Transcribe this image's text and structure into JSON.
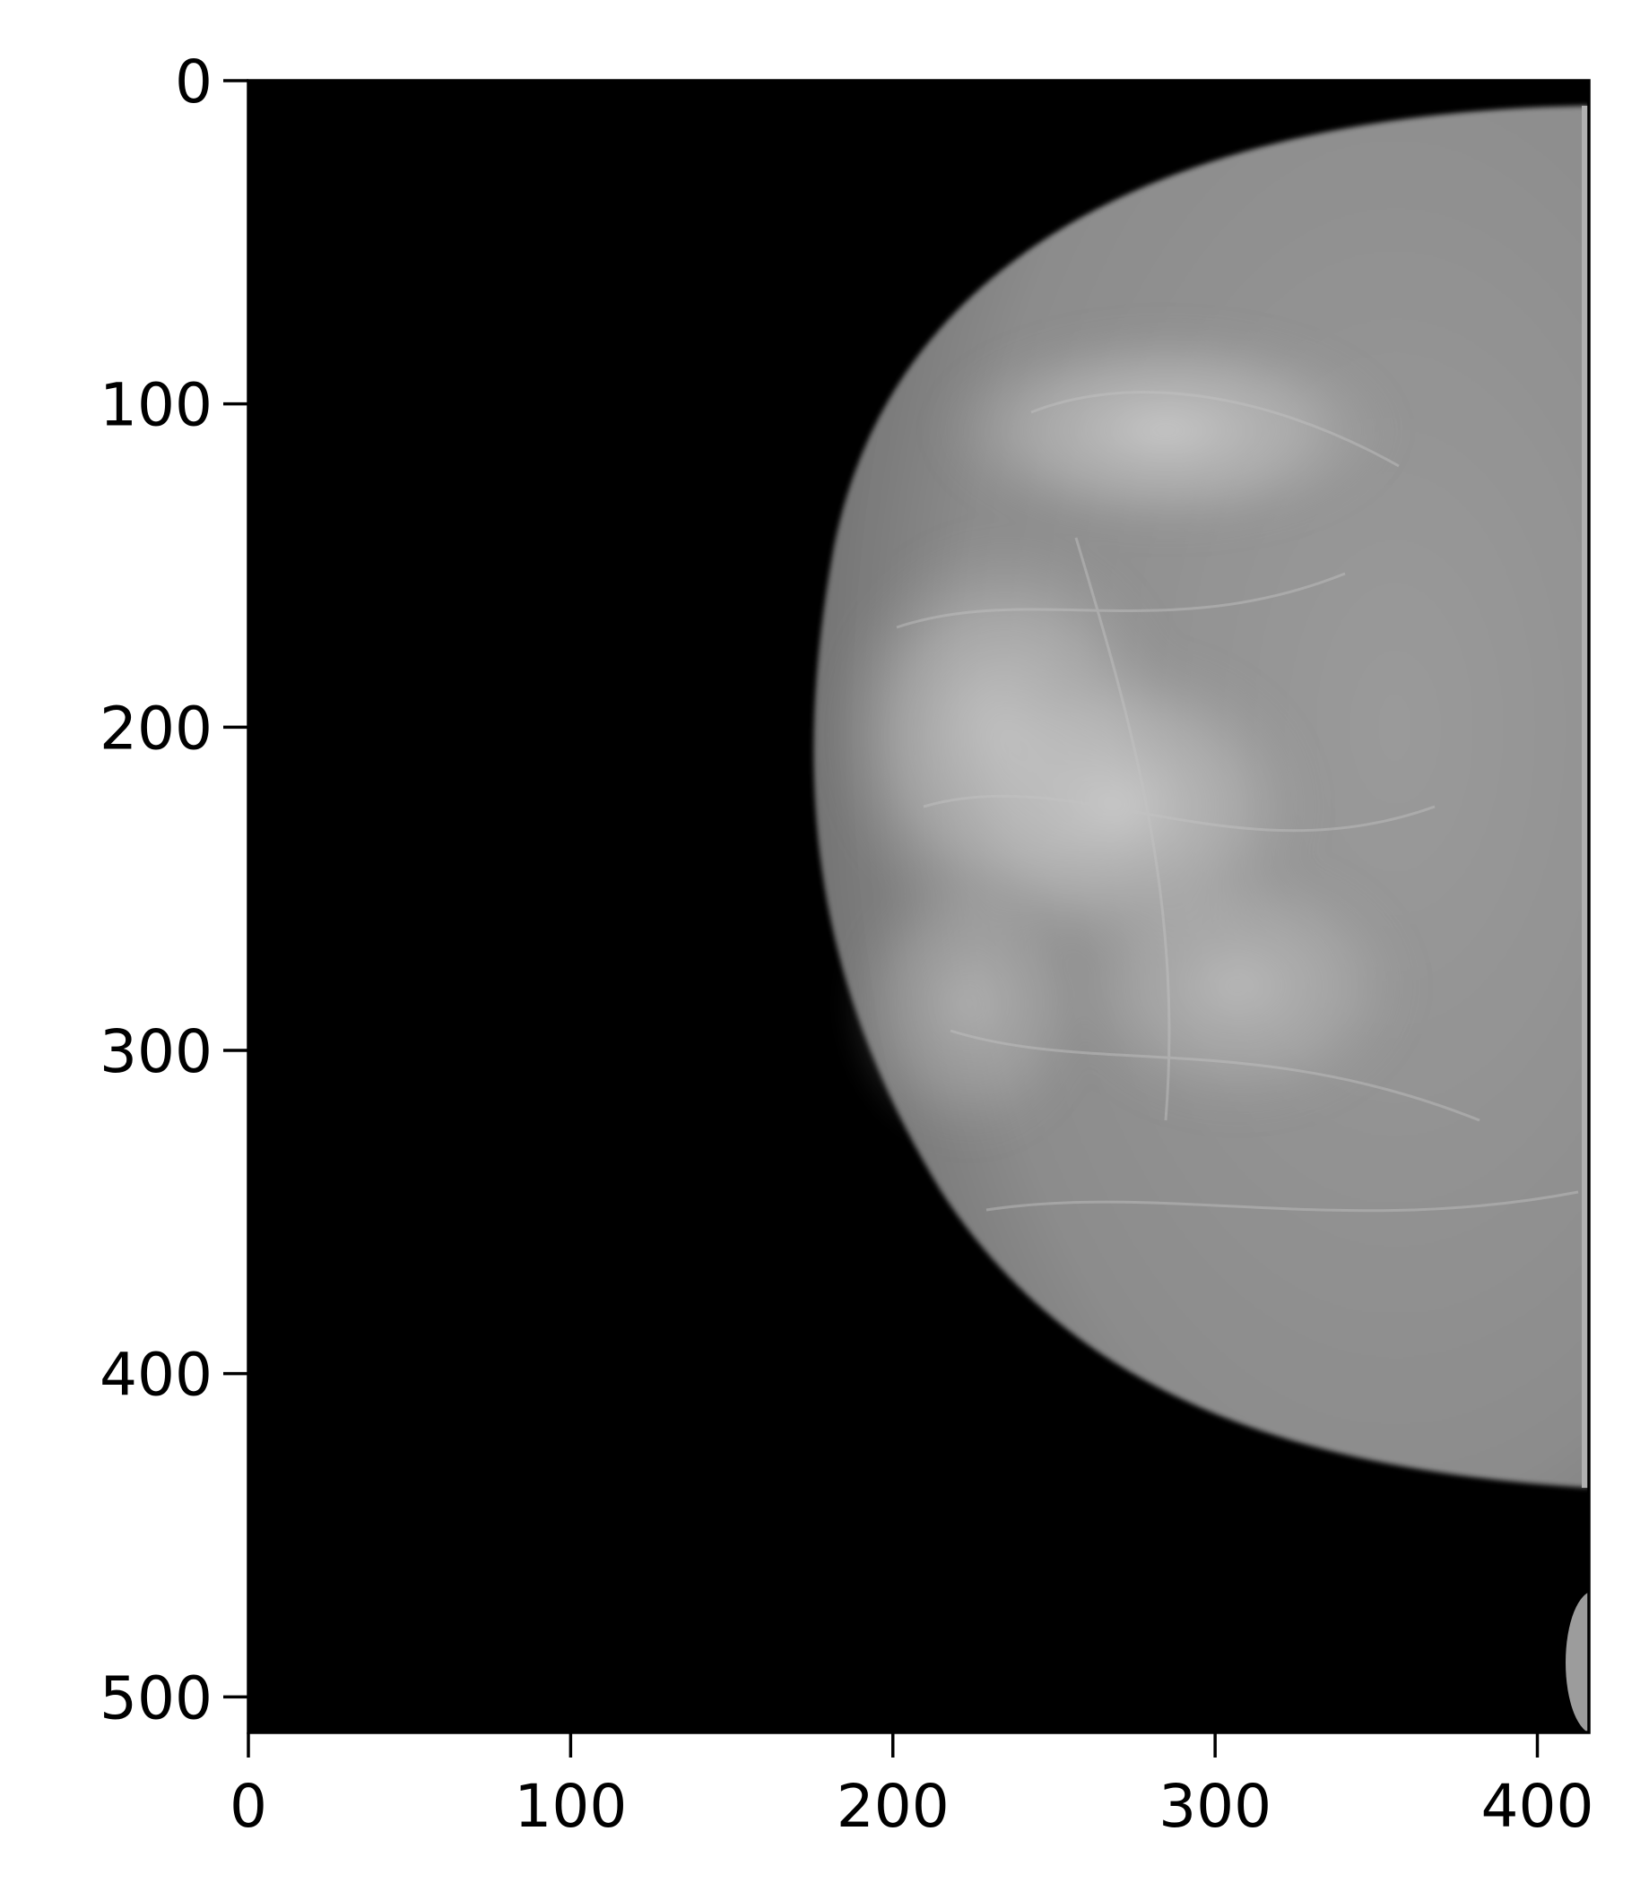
{
  "image": {
    "subject": "mammogram-grayscale",
    "background_color": "#000000",
    "tissue_color": "#8a8a8a",
    "dense_tissue_color": "#c8c8c8"
  },
  "axes": {
    "x_ticks": [
      "0",
      "100",
      "200",
      "300",
      "400"
    ],
    "y_ticks": [
      "0",
      "100",
      "200",
      "300",
      "400",
      "500"
    ],
    "x_range": [
      0,
      416
    ],
    "y_range": [
      511,
      0
    ]
  }
}
